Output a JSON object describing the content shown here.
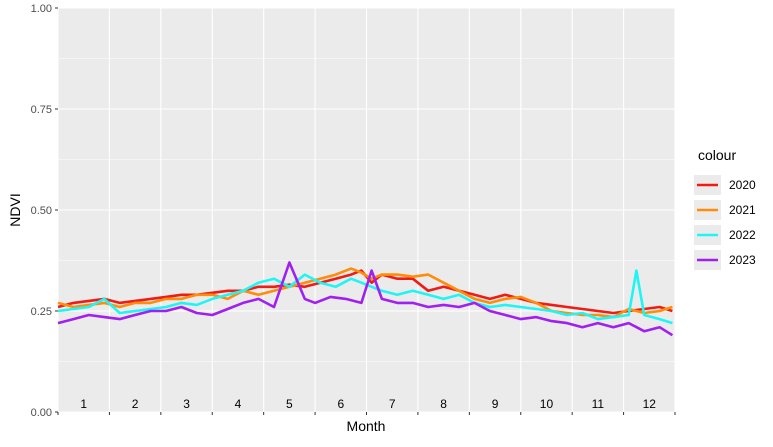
{
  "chart_data": {
    "type": "line",
    "xlabel": "Month",
    "ylabel": "NDVI",
    "ylim": [
      0,
      1
    ],
    "yticks": [
      "0.00",
      "0.25",
      "0.50",
      "0.75",
      "1.00"
    ],
    "month_labels": [
      "1",
      "2",
      "3",
      "4",
      "5",
      "6",
      "7",
      "8",
      "9",
      "10",
      "11",
      "12"
    ],
    "legend": {
      "title": "colour",
      "placement": "right"
    },
    "grid": true,
    "series": [
      {
        "name": "2020",
        "color": "#ee1c14",
        "x": [
          0.0,
          0.3,
          0.6,
          0.9,
          1.2,
          1.5,
          1.8,
          2.1,
          2.4,
          2.7,
          3.0,
          3.3,
          3.6,
          3.9,
          4.2,
          4.5,
          4.8,
          5.1,
          5.4,
          5.7,
          5.9,
          6.1,
          6.3,
          6.6,
          6.9,
          7.2,
          7.5,
          7.8,
          8.1,
          8.4,
          8.7,
          9.0,
          9.3,
          9.6,
          9.9,
          10.2,
          10.5,
          10.8,
          11.1,
          11.4,
          11.7,
          11.95
        ],
        "y": [
          0.26,
          0.27,
          0.275,
          0.28,
          0.27,
          0.275,
          0.28,
          0.285,
          0.29,
          0.29,
          0.295,
          0.3,
          0.3,
          0.31,
          0.31,
          0.315,
          0.31,
          0.32,
          0.33,
          0.34,
          0.35,
          0.32,
          0.34,
          0.33,
          0.33,
          0.3,
          0.31,
          0.3,
          0.29,
          0.28,
          0.29,
          0.28,
          0.27,
          0.265,
          0.26,
          0.255,
          0.25,
          0.245,
          0.25,
          0.255,
          0.26,
          0.25
        ]
      },
      {
        "name": "2021",
        "color": "#ff8c0a",
        "x": [
          0.0,
          0.3,
          0.6,
          0.9,
          1.2,
          1.5,
          1.8,
          2.1,
          2.4,
          2.7,
          3.0,
          3.3,
          3.6,
          3.9,
          4.2,
          4.5,
          4.8,
          5.1,
          5.4,
          5.7,
          5.9,
          6.1,
          6.3,
          6.6,
          6.9,
          7.2,
          7.5,
          7.8,
          8.1,
          8.4,
          8.7,
          9.0,
          9.3,
          9.6,
          9.9,
          10.2,
          10.5,
          10.8,
          11.1,
          11.4,
          11.7,
          11.95
        ],
        "y": [
          0.27,
          0.26,
          0.265,
          0.27,
          0.26,
          0.27,
          0.27,
          0.28,
          0.28,
          0.29,
          0.29,
          0.28,
          0.3,
          0.29,
          0.3,
          0.31,
          0.32,
          0.33,
          0.34,
          0.355,
          0.345,
          0.33,
          0.34,
          0.34,
          0.335,
          0.34,
          0.32,
          0.3,
          0.28,
          0.27,
          0.28,
          0.285,
          0.27,
          0.25,
          0.245,
          0.24,
          0.24,
          0.235,
          0.255,
          0.245,
          0.25,
          0.26
        ]
      },
      {
        "name": "2022",
        "color": "#1ff5f5",
        "x": [
          0.0,
          0.3,
          0.6,
          0.9,
          1.2,
          1.5,
          1.8,
          2.1,
          2.4,
          2.7,
          3.0,
          3.3,
          3.6,
          3.9,
          4.2,
          4.5,
          4.8,
          5.1,
          5.4,
          5.7,
          5.9,
          6.1,
          6.3,
          6.6,
          6.9,
          7.2,
          7.5,
          7.8,
          8.1,
          8.4,
          8.7,
          9.0,
          9.3,
          9.6,
          9.9,
          10.2,
          10.5,
          10.8,
          11.1,
          11.25,
          11.4,
          11.7,
          11.95
        ],
        "y": [
          0.25,
          0.255,
          0.26,
          0.28,
          0.245,
          0.25,
          0.255,
          0.26,
          0.27,
          0.265,
          0.28,
          0.29,
          0.3,
          0.32,
          0.33,
          0.31,
          0.34,
          0.32,
          0.31,
          0.33,
          0.32,
          0.31,
          0.3,
          0.29,
          0.3,
          0.29,
          0.28,
          0.29,
          0.27,
          0.26,
          0.265,
          0.26,
          0.255,
          0.25,
          0.24,
          0.245,
          0.23,
          0.235,
          0.24,
          0.35,
          0.24,
          0.23,
          0.22
        ]
      },
      {
        "name": "2023",
        "color": "#a020f0",
        "x": [
          0.0,
          0.3,
          0.6,
          0.9,
          1.2,
          1.5,
          1.8,
          2.1,
          2.4,
          2.7,
          3.0,
          3.3,
          3.6,
          3.9,
          4.2,
          4.5,
          4.8,
          5.0,
          5.3,
          5.6,
          5.9,
          6.1,
          6.3,
          6.6,
          6.9,
          7.2,
          7.5,
          7.8,
          8.1,
          8.4,
          8.7,
          9.0,
          9.3,
          9.6,
          9.9,
          10.2,
          10.5,
          10.8,
          11.1,
          11.4,
          11.7,
          11.95
        ],
        "y": [
          0.22,
          0.23,
          0.24,
          0.235,
          0.23,
          0.24,
          0.25,
          0.25,
          0.26,
          0.245,
          0.24,
          0.255,
          0.27,
          0.28,
          0.26,
          0.37,
          0.28,
          0.27,
          0.285,
          0.28,
          0.27,
          0.35,
          0.28,
          0.27,
          0.27,
          0.26,
          0.265,
          0.26,
          0.27,
          0.25,
          0.24,
          0.23,
          0.235,
          0.225,
          0.22,
          0.21,
          0.22,
          0.21,
          0.22,
          0.2,
          0.21,
          0.19
        ]
      }
    ]
  }
}
